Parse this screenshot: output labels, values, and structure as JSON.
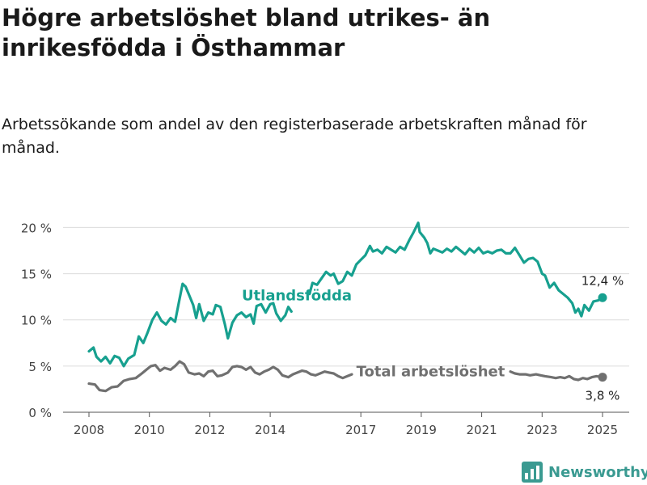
{
  "title": "Högre arbetslöshet bland utrikes- än inrikesfödda i Östhammar",
  "subtitle": "Arbetssökande som andel av den registerbaserade arbetskraften månad för månad.",
  "brand": {
    "name": "Newsworthy",
    "color": "#3a9a91"
  },
  "chart_data": {
    "type": "line",
    "title": "Högre arbetslöshet bland utrikes- än inrikesfödda i Östhammar",
    "subtitle": "Arbetssökande som andel av den registerbaserade arbetskraften månad för månad.",
    "xlabel": "",
    "ylabel": "",
    "ylim": [
      0,
      21
    ],
    "xlim": [
      2007.5,
      2025.75
    ],
    "grid": "horizontal",
    "y_ticks": [
      0,
      5,
      10,
      15,
      20
    ],
    "y_tick_labels": [
      "0 %",
      "5 %",
      "10 %",
      "15 %",
      "20 %"
    ],
    "x_ticks": [
      2008,
      2010,
      2012,
      2014,
      2017,
      2019,
      2021,
      2023,
      2025
    ],
    "x_tick_labels": [
      "2008",
      "2010",
      "2012",
      "2014",
      "2017",
      "2019",
      "2021",
      "2023",
      "2025"
    ],
    "series": [
      {
        "name": "Utlandsfödda",
        "color": "#17a08f",
        "end_label": "12,4 %",
        "points": [
          [
            2008.0,
            6.6
          ],
          [
            2008.15,
            7.0
          ],
          [
            2008.25,
            6.0
          ],
          [
            2008.4,
            5.5
          ],
          [
            2008.55,
            6.0
          ],
          [
            2008.7,
            5.3
          ],
          [
            2008.85,
            6.1
          ],
          [
            2009.0,
            5.9
          ],
          [
            2009.15,
            5.0
          ],
          [
            2009.3,
            5.8
          ],
          [
            2009.5,
            6.2
          ],
          [
            2009.65,
            8.2
          ],
          [
            2009.8,
            7.5
          ],
          [
            2009.95,
            8.7
          ],
          [
            2010.1,
            10.0
          ],
          [
            2010.25,
            10.8
          ],
          [
            2010.4,
            9.9
          ],
          [
            2010.55,
            9.5
          ],
          [
            2010.7,
            10.2
          ],
          [
            2010.85,
            9.8
          ],
          [
            2011.0,
            12.3
          ],
          [
            2011.1,
            13.9
          ],
          [
            2011.2,
            13.6
          ],
          [
            2011.3,
            12.8
          ],
          [
            2011.45,
            11.6
          ],
          [
            2011.55,
            10.2
          ],
          [
            2011.65,
            11.7
          ],
          [
            2011.8,
            9.9
          ],
          [
            2011.95,
            10.8
          ],
          [
            2012.1,
            10.6
          ],
          [
            2012.2,
            11.6
          ],
          [
            2012.35,
            11.4
          ],
          [
            2012.5,
            9.5
          ],
          [
            2012.6,
            8.0
          ],
          [
            2012.75,
            9.7
          ],
          [
            2012.9,
            10.5
          ],
          [
            2013.05,
            10.8
          ],
          [
            2013.2,
            10.3
          ],
          [
            2013.35,
            10.6
          ],
          [
            2013.45,
            9.6
          ],
          [
            2013.55,
            11.5
          ],
          [
            2013.7,
            11.7
          ],
          [
            2013.85,
            10.8
          ],
          [
            2014.0,
            11.7
          ],
          [
            2014.1,
            11.8
          ],
          [
            2014.2,
            10.7
          ],
          [
            2014.35,
            9.9
          ],
          [
            2014.5,
            10.5
          ],
          [
            2014.6,
            11.4
          ],
          [
            2014.7,
            10.9
          ],
          null,
          [
            2015.3,
            12.8
          ],
          [
            2015.4,
            14.0
          ],
          [
            2015.55,
            13.8
          ],
          [
            2015.7,
            14.5
          ],
          [
            2015.85,
            15.2
          ],
          [
            2016.0,
            14.8
          ],
          [
            2016.1,
            15.0
          ],
          [
            2016.25,
            13.9
          ],
          [
            2016.4,
            14.2
          ],
          [
            2016.55,
            15.2
          ],
          [
            2016.7,
            14.8
          ],
          [
            2016.85,
            16.0
          ],
          [
            2017.0,
            16.5
          ],
          [
            2017.15,
            17.0
          ],
          [
            2017.3,
            18.0
          ],
          [
            2017.4,
            17.4
          ],
          [
            2017.55,
            17.6
          ],
          [
            2017.7,
            17.2
          ],
          [
            2017.85,
            17.9
          ],
          [
            2018.0,
            17.6
          ],
          [
            2018.15,
            17.3
          ],
          [
            2018.3,
            17.9
          ],
          [
            2018.45,
            17.6
          ],
          [
            2018.6,
            18.6
          ],
          [
            2018.75,
            19.5
          ],
          [
            2018.9,
            20.5
          ],
          [
            2018.95,
            19.5
          ],
          [
            2019.1,
            18.9
          ],
          [
            2019.2,
            18.3
          ],
          [
            2019.3,
            17.2
          ],
          [
            2019.4,
            17.7
          ],
          [
            2019.55,
            17.5
          ],
          [
            2019.7,
            17.3
          ],
          [
            2019.85,
            17.7
          ],
          [
            2020.0,
            17.4
          ],
          [
            2020.15,
            17.9
          ],
          [
            2020.3,
            17.5
          ],
          [
            2020.45,
            17.1
          ],
          [
            2020.6,
            17.7
          ],
          [
            2020.75,
            17.3
          ],
          [
            2020.9,
            17.8
          ],
          [
            2021.05,
            17.2
          ],
          [
            2021.2,
            17.4
          ],
          [
            2021.35,
            17.2
          ],
          [
            2021.5,
            17.5
          ],
          [
            2021.65,
            17.6
          ],
          [
            2021.8,
            17.2
          ],
          [
            2021.95,
            17.2
          ],
          [
            2022.1,
            17.8
          ],
          [
            2022.25,
            17.0
          ],
          [
            2022.4,
            16.2
          ],
          [
            2022.55,
            16.6
          ],
          [
            2022.7,
            16.7
          ],
          [
            2022.85,
            16.3
          ],
          [
            2023.0,
            15.0
          ],
          [
            2023.1,
            14.8
          ],
          [
            2023.25,
            13.5
          ],
          [
            2023.4,
            14.0
          ],
          [
            2023.55,
            13.2
          ],
          [
            2023.7,
            12.8
          ],
          [
            2023.85,
            12.4
          ],
          [
            2024.0,
            11.8
          ],
          [
            2024.1,
            10.8
          ],
          [
            2024.2,
            11.2
          ],
          [
            2024.3,
            10.4
          ],
          [
            2024.4,
            11.6
          ],
          [
            2024.55,
            11.0
          ],
          [
            2024.7,
            12.0
          ],
          [
            2024.85,
            12.1
          ],
          [
            2025.0,
            12.4
          ]
        ]
      },
      {
        "name": "Total arbetslöshet",
        "color": "#707070",
        "end_label": "3,8 %",
        "points": [
          [
            2008.0,
            3.1
          ],
          [
            2008.2,
            3.0
          ],
          [
            2008.35,
            2.4
          ],
          [
            2008.55,
            2.3
          ],
          [
            2008.75,
            2.7
          ],
          [
            2008.95,
            2.8
          ],
          [
            2009.15,
            3.4
          ],
          [
            2009.35,
            3.6
          ],
          [
            2009.55,
            3.7
          ],
          [
            2009.75,
            4.2
          ],
          [
            2009.9,
            4.6
          ],
          [
            2010.05,
            5.0
          ],
          [
            2010.2,
            5.1
          ],
          [
            2010.35,
            4.5
          ],
          [
            2010.5,
            4.8
          ],
          [
            2010.7,
            4.6
          ],
          [
            2010.85,
            5.0
          ],
          [
            2011.0,
            5.5
          ],
          [
            2011.15,
            5.2
          ],
          [
            2011.3,
            4.3
          ],
          [
            2011.5,
            4.1
          ],
          [
            2011.65,
            4.2
          ],
          [
            2011.8,
            3.9
          ],
          [
            2011.95,
            4.4
          ],
          [
            2012.1,
            4.5
          ],
          [
            2012.25,
            3.9
          ],
          [
            2012.4,
            4.0
          ],
          [
            2012.6,
            4.3
          ],
          [
            2012.75,
            4.9
          ],
          [
            2012.9,
            5.0
          ],
          [
            2013.05,
            4.9
          ],
          [
            2013.2,
            4.6
          ],
          [
            2013.35,
            4.9
          ],
          [
            2013.5,
            4.3
          ],
          [
            2013.65,
            4.1
          ],
          [
            2013.8,
            4.4
          ],
          [
            2013.95,
            4.6
          ],
          [
            2014.1,
            4.9
          ],
          [
            2014.25,
            4.6
          ],
          [
            2014.4,
            4.0
          ],
          [
            2014.6,
            3.8
          ],
          [
            2014.75,
            4.1
          ],
          [
            2014.9,
            4.3
          ],
          [
            2015.05,
            4.5
          ],
          [
            2015.2,
            4.4
          ],
          [
            2015.35,
            4.1
          ],
          [
            2015.5,
            4.0
          ],
          [
            2015.65,
            4.2
          ],
          [
            2015.8,
            4.4
          ],
          [
            2015.95,
            4.3
          ],
          [
            2016.1,
            4.2
          ],
          [
            2016.25,
            3.9
          ],
          [
            2016.4,
            3.7
          ],
          [
            2016.55,
            3.9
          ],
          [
            2016.7,
            4.1
          ],
          null,
          [
            2021.95,
            4.4
          ],
          [
            2022.1,
            4.2
          ],
          [
            2022.25,
            4.1
          ],
          [
            2022.45,
            4.1
          ],
          [
            2022.6,
            4.0
          ],
          [
            2022.8,
            4.1
          ],
          [
            2022.95,
            4.0
          ],
          [
            2023.1,
            3.9
          ],
          [
            2023.3,
            3.8
          ],
          [
            2023.45,
            3.7
          ],
          [
            2023.6,
            3.8
          ],
          [
            2023.75,
            3.7
          ],
          [
            2023.9,
            3.9
          ],
          [
            2024.05,
            3.6
          ],
          [
            2024.2,
            3.5
          ],
          [
            2024.35,
            3.7
          ],
          [
            2024.5,
            3.6
          ],
          [
            2024.65,
            3.8
          ],
          [
            2024.8,
            3.9
          ],
          [
            2025.0,
            3.8
          ]
        ]
      }
    ],
    "annotations": [
      {
        "text": "Utlandsfödda",
        "series": 0
      },
      {
        "text": "Total arbetslöshet",
        "series": 1
      }
    ],
    "legend": "inline labels"
  }
}
